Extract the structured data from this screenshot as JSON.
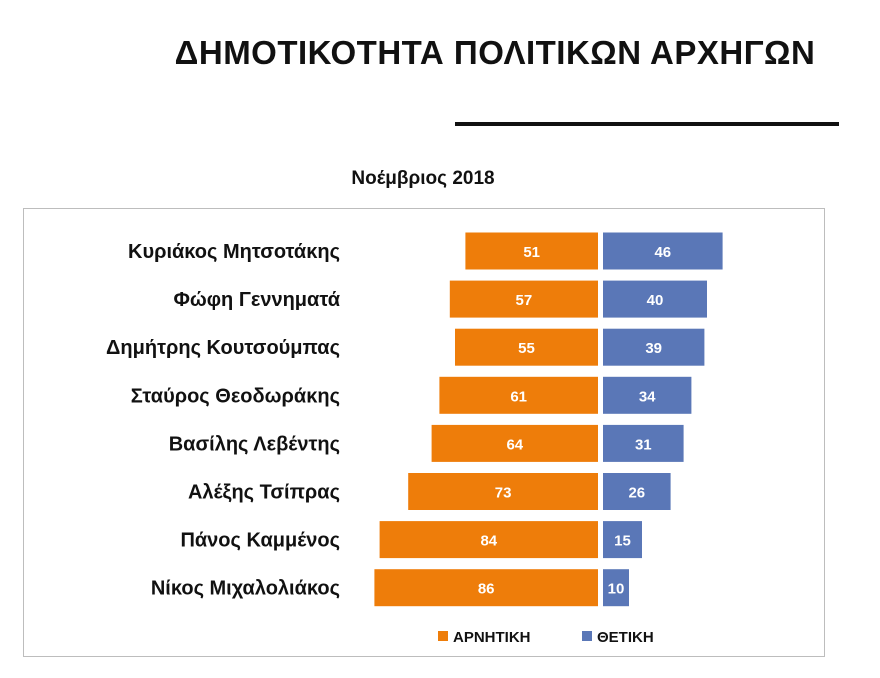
{
  "title": "ΔΗΜΟΤΙΚΟΤΗΤΑ ΠΟΛΙΤΙΚΩΝ ΑΡΧΗΓΩΝ",
  "chart_data": {
    "type": "bar",
    "orientation": "horizontal-diverging",
    "title": "Νοέμβριος 2018",
    "categories": [
      "Κυριάκος Μητσοτάκης",
      "Φώφη Γεννηματά",
      "Δημήτρης Κουτσούμπας",
      "Σταύρος Θεοδωράκης",
      "Βασίλης Λεβέντης",
      "Αλέξης Τσίπρας",
      "Πάνος Καμμένος",
      "Νίκος Μιχαλολιάκος"
    ],
    "series": [
      {
        "name": "ΑΡΝΗΤΙΚΗ",
        "color": "#EE7D0A",
        "direction": "left",
        "values": [
          51,
          57,
          55,
          61,
          64,
          73,
          84,
          86
        ]
      },
      {
        "name": "ΘΕΤΙΚΗ",
        "color": "#5A77B7",
        "direction": "right",
        "values": [
          46,
          40,
          39,
          34,
          31,
          26,
          15,
          10
        ]
      }
    ],
    "data_labels": true,
    "legend": "bottom",
    "grid": false
  }
}
